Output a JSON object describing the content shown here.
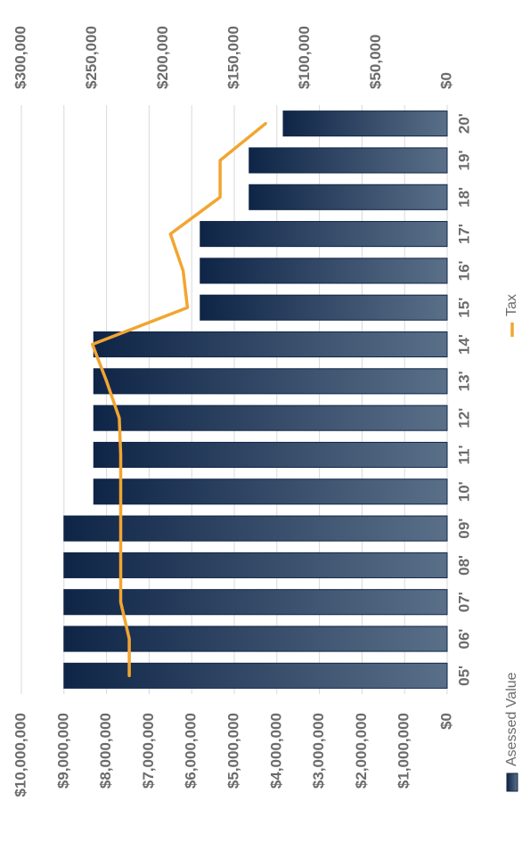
{
  "chart_data": {
    "type": "bar",
    "orientation": "rotated-90-clockwise",
    "categories": [
      "05'",
      "06'",
      "07'",
      "08'",
      "09'",
      "10'",
      "11'",
      "12'",
      "13'",
      "14'",
      "15'",
      "16'",
      "17'",
      "18'",
      "19'",
      "20'"
    ],
    "series": [
      {
        "name": "Asessed Value",
        "kind": "bar",
        "axis": "left",
        "values": [
          9000000,
          9000000,
          9000000,
          9000000,
          9000000,
          8300000,
          8300000,
          8300000,
          8300000,
          8300000,
          5800000,
          5800000,
          5800000,
          4650000,
          4650000,
          3850000
        ]
      },
      {
        "name": "Tax",
        "kind": "line",
        "axis": "right",
        "values": [
          224000,
          224000,
          230000,
          230000,
          230000,
          230000,
          230000,
          231000,
          240000,
          250000,
          183000,
          186000,
          195000,
          160000,
          160000,
          128000
        ]
      }
    ],
    "left_axis": {
      "ticks": [
        "$0",
        "$1,000,000",
        "$2,000,000",
        "$3,000,000",
        "$4,000,000",
        "$5,000,000",
        "$6,000,000",
        "$7,000,000",
        "$8,000,000",
        "$9,000,000",
        "$10,000,000"
      ],
      "range": [
        0,
        10000000
      ]
    },
    "right_axis": {
      "ticks": [
        "$0",
        "$50,000",
        "$100,000",
        "$150,000",
        "$200,000",
        "$250,000",
        "$300,000"
      ],
      "range": [
        0,
        300000
      ]
    },
    "grid": true,
    "legend": "bottom",
    "colors": {
      "bar_dark": "#0f2547",
      "bar_light": "#5a6f88",
      "line": "#f2a531",
      "grid": "#d9d9d9",
      "text": "#6b6b6b"
    }
  }
}
